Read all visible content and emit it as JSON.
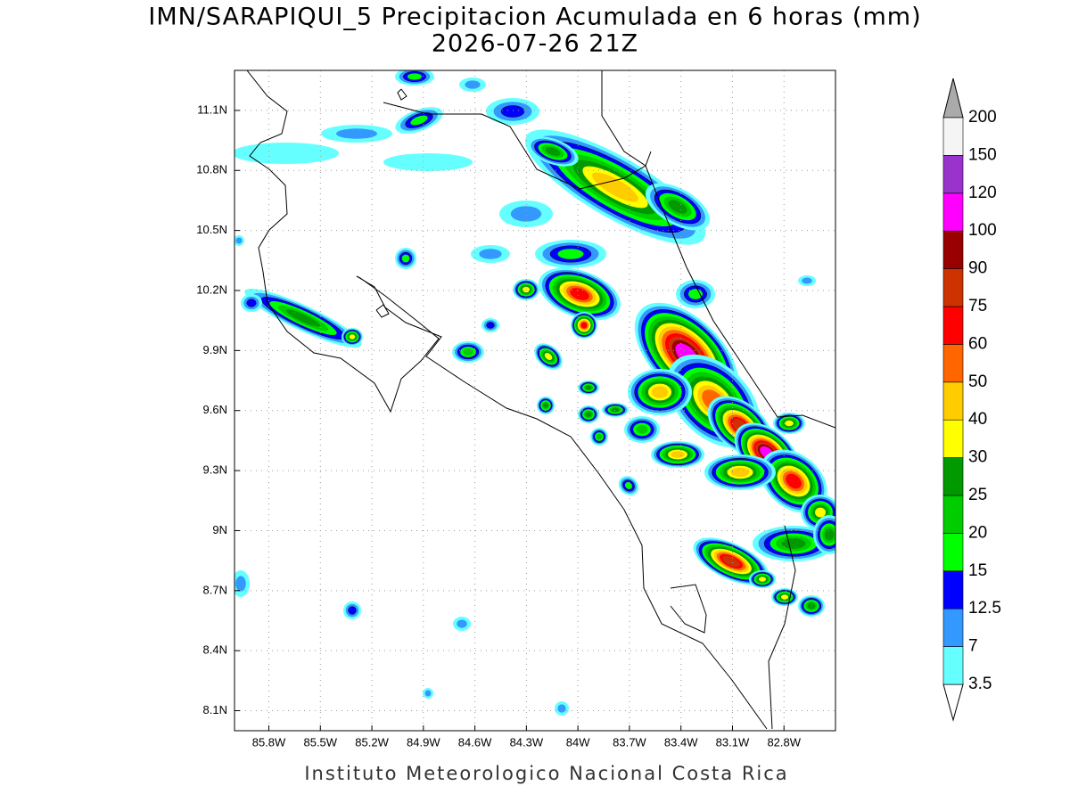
{
  "map_data": {
    "title": "IMN/SARAPIQUI_5 Precipitacion Acumulada en 6 horas (mm)",
    "subtitle": "2026-07-26 21Z",
    "footer": "Instituto Meteorologico Nacional Costa Rica",
    "lon_range": [
      -86.0,
      -82.5
    ],
    "lat_range": [
      8.0,
      11.3
    ],
    "lat_ticks": [
      {
        "value": 11.1,
        "label": "11.1N"
      },
      {
        "value": 10.8,
        "label": "10.8N"
      },
      {
        "value": 10.5,
        "label": "10.5N"
      },
      {
        "value": 10.2,
        "label": "10.2N"
      },
      {
        "value": 9.9,
        "label": "9.9N"
      },
      {
        "value": 9.6,
        "label": "9.6N"
      },
      {
        "value": 9.3,
        "label": "9.3N"
      },
      {
        "value": 9,
        "label": "9N"
      },
      {
        "value": 8.7,
        "label": "8.7N"
      },
      {
        "value": 8.4,
        "label": "8.4N"
      },
      {
        "value": 8.1,
        "label": "8.1N"
      }
    ],
    "lon_ticks": [
      {
        "value": -85.8,
        "label": "85.8W"
      },
      {
        "value": -85.5,
        "label": "85.5W"
      },
      {
        "value": -85.2,
        "label": "85.2W"
      },
      {
        "value": -84.9,
        "label": "84.9W"
      },
      {
        "value": -84.6,
        "label": "84.6W"
      },
      {
        "value": -84.3,
        "label": "84.3W"
      },
      {
        "value": -84,
        "label": "84W"
      },
      {
        "value": -83.7,
        "label": "83.7W"
      },
      {
        "value": -83.4,
        "label": "83.4W"
      },
      {
        "value": -83.1,
        "label": "83.1W"
      },
      {
        "value": -82.8,
        "label": "82.8W"
      }
    ],
    "grid": true,
    "colorbar": {
      "levels": [
        3.5,
        7,
        12.5,
        15,
        20,
        25,
        30,
        40,
        50,
        60,
        75,
        90,
        100,
        120,
        150,
        200
      ],
      "colors": [
        "#66ffff",
        "#3399ff",
        "#0000ff",
        "#00ff00",
        "#00cc00",
        "#009900",
        "#ffff00",
        "#ffcc00",
        "#ff6600",
        "#ff0000",
        "#cc3300",
        "#990000",
        "#ff00ff",
        "#9933cc",
        "#f5f5f5"
      ],
      "below_color": "#ffffff",
      "above_color": "#aaaaaa"
    }
  }
}
